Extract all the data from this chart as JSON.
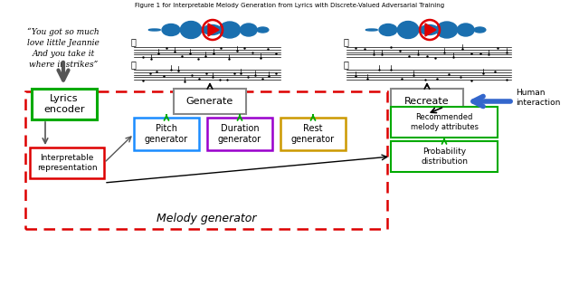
{
  "title": "Figure 1 for Interpretable Melody Generation from Lyrics with Discrete-Valued Adversarial Training",
  "quote_text": "“You got so much\nlove little Jeannie\nAnd you take it\nwhere it strikes”",
  "lyrics_encoder_label": "Lyrics\nencoder",
  "generate_label": "Generate",
  "recreate_label": "Recreate",
  "human_interaction_label": "Human\ninteraction",
  "pitch_gen_label": "Pitch\ngenerator",
  "duration_gen_label": "Duration\ngenerator",
  "rest_gen_label": "Rest\ngenerator",
  "interpretable_label": "Interpretable\nrepresentation",
  "melody_gen_label": "Melody generator",
  "recommended_label": "Recommended\nmelody attributes",
  "prob_dist_label": "Probability\ndistribution",
  "bg_color": "#ffffff",
  "waveform_color": "#1a6faf",
  "green_color": "#00aa00",
  "blue_color": "#1a8cff",
  "purple_color": "#9900cc",
  "yellow_color": "#cc9900",
  "red_color": "#dd0000",
  "gray_color": "#888888",
  "dark_blue_arrow": "#2255cc"
}
